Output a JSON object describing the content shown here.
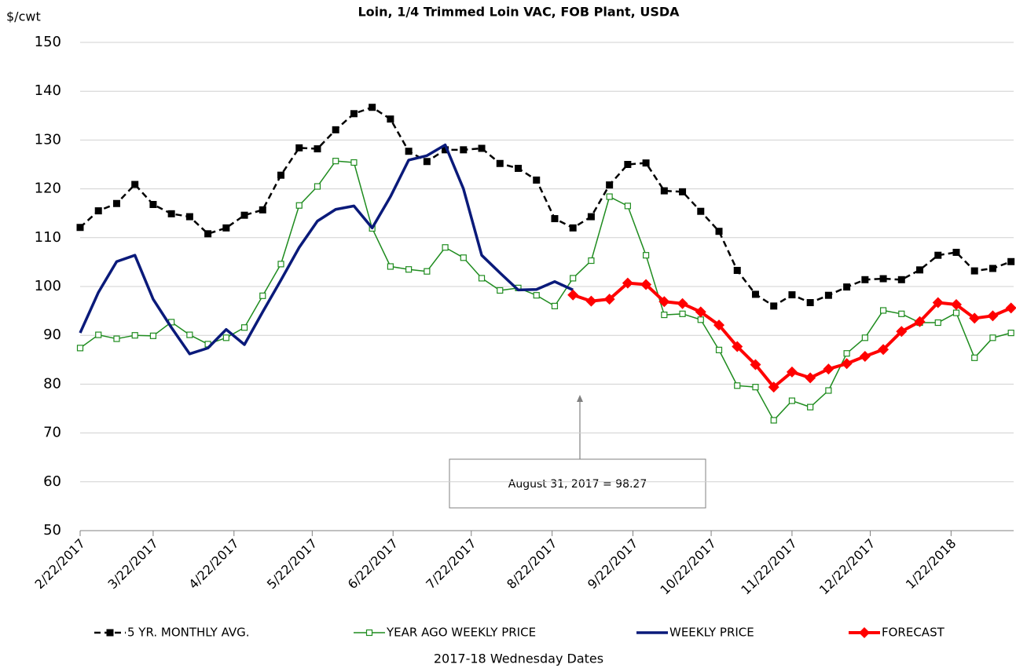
{
  "chart_data": {
    "type": "line",
    "title": "Loin, 1/4 Trimmed Loin VAC, FOB Plant, USDA",
    "y_label": "$/cwt",
    "x_label": "2017-18 Wednesday Dates",
    "annotation": "August 31, 2017  = 98.27",
    "x": [
      "2/22/2017",
      "3/1/2017",
      "3/8/2017",
      "3/15/2017",
      "3/22/2017",
      "3/29/2017",
      "4/5/2017",
      "4/12/2017",
      "4/19/2017",
      "4/26/2017",
      "5/3/2017",
      "5/10/2017",
      "5/17/2017",
      "5/24/2017",
      "5/31/2017",
      "6/7/2017",
      "6/14/2017",
      "6/21/2017",
      "6/28/2017",
      "7/5/2017",
      "7/12/2017",
      "7/19/2017",
      "7/26/2017",
      "8/2/2017",
      "8/9/2017",
      "8/16/2017",
      "8/23/2017",
      "8/30/2017",
      "9/6/2017",
      "9/13/2017",
      "9/20/2017",
      "9/27/2017",
      "10/4/2017",
      "10/11/2017",
      "10/18/2017",
      "10/25/2017",
      "11/1/2017",
      "11/8/2017",
      "11/15/2017",
      "11/22/2017",
      "11/29/2017",
      "12/6/2017",
      "12/13/2017",
      "12/20/2017",
      "12/27/2017",
      "1/3/2018",
      "1/10/2018",
      "1/17/2018",
      "1/24/2018",
      "1/31/2018",
      "2/7/2018",
      "2/14/2018"
    ],
    "xlim": [
      "2/22/2017",
      "2/15/2018"
    ],
    "xticks": [
      "2/22/2017",
      "3/22/2017",
      "4/22/2017",
      "5/22/2017",
      "6/22/2017",
      "7/22/2017",
      "8/22/2017",
      "9/22/2017",
      "10/22/2017",
      "11/22/2017",
      "12/22/2017",
      "1/22/2018"
    ],
    "ylim": [
      50,
      150
    ],
    "yticks": [
      50,
      60,
      70,
      80,
      90,
      100,
      110,
      120,
      130,
      140,
      150
    ],
    "grid": true,
    "legend": "bottom",
    "series": [
      {
        "name": "5 YR. MONTHLY AVG.",
        "color": "#000000",
        "dashed": true,
        "marker": "square",
        "width": 2.5,
        "values": [
          112.1,
          115.5,
          117,
          120.9,
          116.8,
          114.9,
          114.3,
          110.8,
          112,
          114.6,
          115.7,
          122.8,
          128.4,
          128.2,
          132.1,
          135.4,
          136.7,
          134.3,
          127.7,
          125.6,
          128,
          128,
          128.3,
          125.2,
          124.2,
          121.8,
          113.9,
          112,
          114.3,
          120.8,
          125,
          125.3,
          119.6,
          119.4,
          115.4,
          111.3,
          103.3,
          98.4,
          96,
          98.3,
          96.7,
          98.2,
          99.9,
          101.4,
          101.6,
          101.4,
          103.4,
          106.4,
          107,
          103.2,
          103.7,
          105.1
        ]
      },
      {
        "name": "YEAR AGO WEEKLY PRICE",
        "color": "#1f8c1f",
        "dashed": false,
        "marker": "hollow-square",
        "width": 1.5,
        "values": [
          87.4,
          90.1,
          89.3,
          90,
          89.9,
          92.7,
          90.1,
          88.2,
          89.5,
          91.6,
          98.1,
          104.6,
          116.6,
          120.5,
          125.7,
          125.4,
          111.9,
          104.1,
          103.5,
          103.1,
          108,
          105.9,
          101.7,
          99.2,
          99.7,
          98.2,
          96,
          101.7,
          105.3,
          118.4,
          116.5,
          106.4,
          94.2,
          94.4,
          93.2,
          87,
          79.7,
          79.4,
          72.6,
          76.6,
          75.3,
          78.7,
          86.3,
          89.5,
          95.1,
          94.4,
          92.6,
          92.6,
          94.6,
          85.4,
          89.5,
          90.5
        ]
      },
      {
        "name": "WEEKLY PRICE",
        "color": "#0a1a7a",
        "dashed": false,
        "marker": "none",
        "width": 3.5,
        "values": [
          90.5,
          98.8,
          105.1,
          106.4,
          97.4,
          91.6,
          86.2,
          87.4,
          91.2,
          88.1,
          94.8,
          101.3,
          108,
          113.4,
          115.8,
          116.5,
          112,
          118.4,
          125.9,
          126.8,
          129,
          120,
          106.4,
          102.8,
          99.3,
          99.4,
          101,
          99.3,
          null,
          null,
          null,
          null,
          null,
          null,
          null,
          null,
          null,
          null,
          null,
          null,
          null,
          null,
          null,
          null,
          null,
          null,
          null,
          null,
          null,
          null,
          null,
          null
        ]
      },
      {
        "name": "FORECAST",
        "color": "#ff0000",
        "dashed": false,
        "marker": "diamond",
        "width": 4,
        "values": [
          null,
          null,
          null,
          null,
          null,
          null,
          null,
          null,
          null,
          null,
          null,
          null,
          null,
          null,
          null,
          null,
          null,
          null,
          null,
          null,
          null,
          null,
          null,
          null,
          null,
          null,
          null,
          98.27,
          97,
          97.4,
          100.7,
          100.4,
          96.9,
          96.5,
          94.8,
          92.1,
          87.7,
          84,
          79.4,
          82.5,
          81.3,
          83.1,
          84.2,
          85.7,
          87.1,
          90.8,
          92.8,
          96.7,
          96.3,
          93.5,
          94,
          95.6
        ]
      }
    ]
  }
}
